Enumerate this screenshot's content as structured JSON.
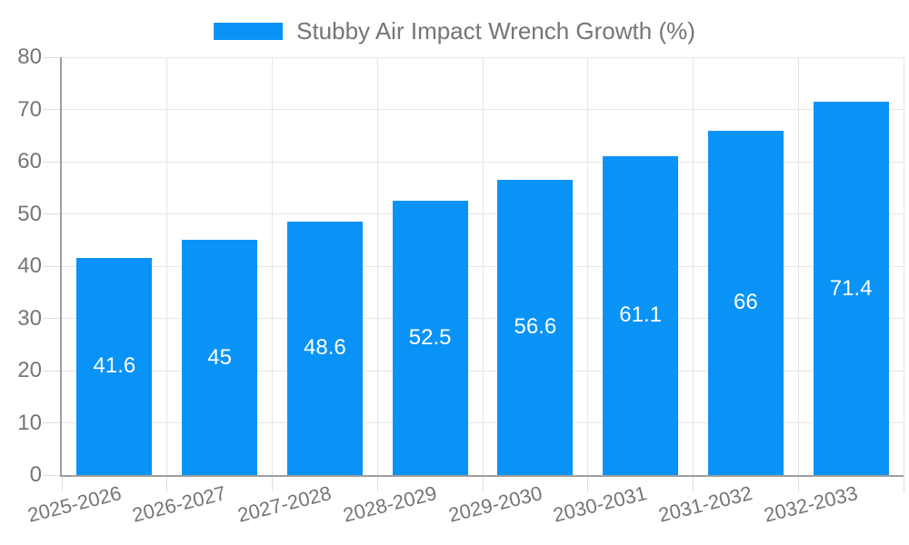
{
  "legend": {
    "label": "Stubby Air Impact Wrench Growth (%)"
  },
  "chart_data": {
    "type": "bar",
    "title": "Stubby Air Impact Wrench Growth (%)",
    "categories": [
      "2025-2026",
      "2026-2027",
      "2027-2028",
      "2028-2029",
      "2029-2030",
      "2030-2031",
      "2031-2032",
      "2032-2033"
    ],
    "values": [
      41.6,
      45,
      48.6,
      52.5,
      56.6,
      61.1,
      66,
      71.4
    ],
    "value_labels": [
      "41.6",
      "45",
      "48.6",
      "52.5",
      "56.6",
      "61.1",
      "66",
      "71.4"
    ],
    "xlabel": "",
    "ylabel": "",
    "ylim": [
      0,
      80
    ],
    "yticks": [
      0,
      10,
      20,
      30,
      40,
      50,
      60,
      70,
      80
    ],
    "grid": true,
    "legend_position": "top-center",
    "x_tick_rotation_deg": -14,
    "value_label_position": "inside-center",
    "colors": {
      "bar": "#0A93F7",
      "value_label": "#FFFFFF",
      "axis_text": "#757575",
      "grid_line": "#E6E6E6",
      "tick_mark": "#DCDCDC",
      "axis_line": "#9E9E9E",
      "background": "#FFFFFF"
    }
  }
}
